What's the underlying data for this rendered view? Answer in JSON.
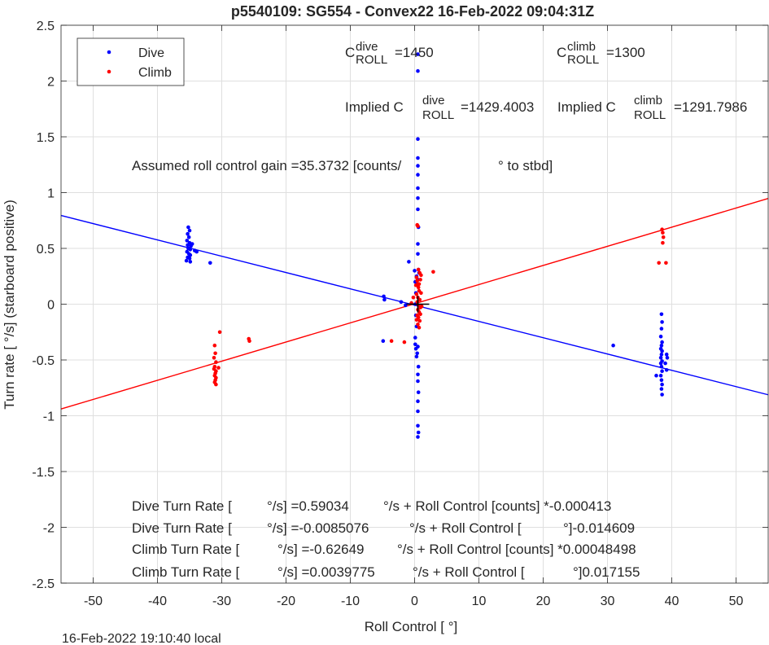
{
  "chart_data": {
    "type": "scatter",
    "title": "p5540109: SG554 - Convex22 16-Feb-2022 09:04:31Z",
    "xlabel": "Roll Control [   °]",
    "ylabel": "Turn rate [   °/s] (starboard positive)",
    "xlim": [
      -55,
      55
    ],
    "ylim": [
      -2.5,
      2.5
    ],
    "xticks": [
      -50,
      -40,
      -30,
      -20,
      -10,
      0,
      10,
      20,
      30,
      40,
      50
    ],
    "yticks": [
      -2.5,
      -2,
      -1.5,
      -1,
      -0.5,
      0,
      0.5,
      1,
      1.5,
      2,
      2.5
    ],
    "grid": true,
    "legend_position": "top-left",
    "colors": {
      "dive": "#0000ff",
      "climb": "#ff0000",
      "grid": "#dfdfdf"
    },
    "legend": [
      {
        "name": "Dive",
        "color": "#0000ff"
      },
      {
        "name": "Climb",
        "color": "#ff0000"
      }
    ],
    "annotations": {
      "c_dive_prefix": "C",
      "c_dive_sup": "dive",
      "c_dive_sub": "ROLL",
      "c_dive_value": "=1450",
      "c_climb_prefix": "C",
      "c_climb_sup": "climb",
      "c_climb_sub": "ROLL",
      "c_climb_value": "=1300",
      "implied_dive_prefix": "Implied C",
      "implied_dive_sup": "dive",
      "implied_dive_sub": "ROLL",
      "implied_dive_value": "=1429.4003",
      "implied_climb_prefix": "Implied C",
      "implied_climb_sup": "climb",
      "implied_climb_sub": "ROLL",
      "implied_climb_value": "=1291.7986",
      "gain_a": "Assumed roll control gain =35.3732 [counts/",
      "gain_b": "° to stbd]",
      "eq1_a": "Dive Turn Rate [",
      "eq1_b": "°/s] =0.59034",
      "eq1_c": "°/s + Roll Control [counts] *-0.000413",
      "eq2_a": "Dive Turn Rate [",
      "eq2_b": "°/s] =-0.0085076",
      "eq2_c": "°/s + Roll Control [",
      "eq2_d": "°]-0.014609",
      "eq3_a": "Climb Turn Rate [",
      "eq3_b": "°/s] =-0.62649",
      "eq3_c": "°/s + Roll Control [counts] *0.00048498",
      "eq4_a": "Climb Turn Rate [",
      "eq4_b": "°/s] =0.0039775",
      "eq4_c": "°/s + Roll Control [",
      "eq4_d": "°]0.017155"
    },
    "timestamp": "16-Feb-2022 19:10:40 local",
    "fit_lines": [
      {
        "series": "Dive",
        "color": "#0000ff",
        "intercept": -0.0085076,
        "slope": -0.014609
      },
      {
        "series": "Climb",
        "color": "#ff0000",
        "intercept": 0.0039775,
        "slope": 0.017155
      }
    ],
    "centroid_marker": {
      "x": 0.5,
      "y": 0.0
    },
    "series": [
      {
        "name": "Dive",
        "color": "#0000ff",
        "points": [
          [
            -35.2,
            0.69
          ],
          [
            -35.0,
            0.66
          ],
          [
            -35.3,
            0.63
          ],
          [
            -35.1,
            0.6
          ],
          [
            -35.4,
            0.57
          ],
          [
            -35.0,
            0.55
          ],
          [
            -35.3,
            0.53
          ],
          [
            -34.8,
            0.52
          ],
          [
            -34.6,
            0.54
          ],
          [
            -35.2,
            0.5
          ],
          [
            -34.9,
            0.49
          ],
          [
            -35.4,
            0.47
          ],
          [
            -35.1,
            0.45
          ],
          [
            -34.9,
            0.44
          ],
          [
            -35.3,
            0.42
          ],
          [
            -35.0,
            0.41
          ],
          [
            -35.5,
            0.39
          ],
          [
            -34.9,
            0.38
          ],
          [
            -34.2,
            0.48
          ],
          [
            -33.9,
            0.47
          ],
          [
            -31.8,
            0.37
          ],
          [
            -4.8,
            0.07
          ],
          [
            -4.7,
            0.04
          ],
          [
            -4.9,
            -0.33
          ],
          [
            -2.1,
            0.02
          ],
          [
            -1.4,
            -0.01
          ],
          [
            -0.9,
            0.38
          ],
          [
            0.0,
            0.3
          ],
          [
            0.1,
            0.2
          ],
          [
            0.2,
            0.1
          ],
          [
            0.1,
            0.0
          ],
          [
            0.2,
            -0.1
          ],
          [
            0.3,
            -0.2
          ],
          [
            0.1,
            -0.3
          ],
          [
            0.2,
            -0.4
          ],
          [
            0.3,
            -0.47
          ],
          [
            0.1,
            -0.36
          ],
          [
            0.4,
            -0.44
          ],
          [
            0.5,
            -0.38
          ],
          [
            0.6,
            0.31
          ],
          [
            0.7,
            0.28
          ],
          [
            0.3,
            0.25
          ],
          [
            0.5,
            0.22
          ],
          [
            0.5,
            0.45
          ],
          [
            0.5,
            0.54
          ],
          [
            0.6,
            0.69
          ],
          [
            0.5,
            0.85
          ],
          [
            0.5,
            0.95
          ],
          [
            0.5,
            1.04
          ],
          [
            0.5,
            1.16
          ],
          [
            0.5,
            1.24
          ],
          [
            0.5,
            1.31
          ],
          [
            0.5,
            1.48
          ],
          [
            0.5,
            2.09
          ],
          [
            0.5,
            2.24
          ],
          [
            0.6,
            -0.56
          ],
          [
            0.5,
            -0.63
          ],
          [
            0.5,
            -0.69
          ],
          [
            0.6,
            -0.79
          ],
          [
            0.5,
            -0.87
          ],
          [
            0.5,
            -0.96
          ],
          [
            0.5,
            -1.09
          ],
          [
            0.6,
            -1.15
          ],
          [
            0.5,
            -1.19
          ],
          [
            30.9,
            -0.37
          ],
          [
            37.6,
            -0.64
          ],
          [
            38.4,
            -0.09
          ],
          [
            38.5,
            -0.16
          ],
          [
            38.4,
            -0.22
          ],
          [
            38.3,
            -0.29
          ],
          [
            38.5,
            -0.34
          ],
          [
            38.4,
            -0.37
          ],
          [
            38.3,
            -0.4
          ],
          [
            38.5,
            -0.42
          ],
          [
            38.4,
            -0.45
          ],
          [
            38.3,
            -0.48
          ],
          [
            38.5,
            -0.51
          ],
          [
            38.3,
            -0.53
          ],
          [
            38.4,
            -0.56
          ],
          [
            38.5,
            -0.6
          ],
          [
            38.3,
            -0.64
          ],
          [
            38.4,
            -0.68
          ],
          [
            38.5,
            -0.72
          ],
          [
            38.4,
            -0.76
          ],
          [
            38.5,
            -0.81
          ],
          [
            39.2,
            -0.45
          ],
          [
            39.3,
            -0.48
          ],
          [
            39.0,
            -0.53
          ],
          [
            39.2,
            -0.59
          ]
        ]
      },
      {
        "name": "Climb",
        "color": "#ff0000",
        "points": [
          [
            -31.1,
            -0.37
          ],
          [
            -31.0,
            -0.44
          ],
          [
            -31.2,
            -0.48
          ],
          [
            -30.9,
            -0.52
          ],
          [
            -31.1,
            -0.56
          ],
          [
            -31.2,
            -0.58
          ],
          [
            -30.9,
            -0.6
          ],
          [
            -31.0,
            -0.62
          ],
          [
            -31.1,
            -0.64
          ],
          [
            -30.9,
            -0.66
          ],
          [
            -31.0,
            -0.68
          ],
          [
            -31.1,
            -0.7
          ],
          [
            -30.9,
            -0.72
          ],
          [
            -30.5,
            -0.57
          ],
          [
            -30.3,
            -0.25
          ],
          [
            -25.8,
            -0.31
          ],
          [
            -25.7,
            -0.33
          ],
          [
            -3.6,
            -0.33
          ],
          [
            -1.6,
            -0.34
          ],
          [
            -0.5,
            0.01
          ],
          [
            -0.2,
            0.06
          ],
          [
            0.3,
            0.24
          ],
          [
            0.4,
            0.21
          ],
          [
            0.5,
            0.18
          ],
          [
            0.6,
            0.15
          ],
          [
            0.7,
            0.12
          ],
          [
            0.3,
            0.09
          ],
          [
            0.5,
            0.06
          ],
          [
            0.8,
            0.04
          ],
          [
            0.4,
            0.02
          ],
          [
            0.6,
            -0.01
          ],
          [
            0.9,
            -0.03
          ],
          [
            0.5,
            -0.05
          ],
          [
            0.7,
            -0.07
          ],
          [
            0.4,
            -0.1
          ],
          [
            0.6,
            -0.12
          ],
          [
            0.8,
            -0.15
          ],
          [
            0.5,
            -0.18
          ],
          [
            0.7,
            -0.21
          ],
          [
            0.9,
            0.22
          ],
          [
            1.0,
            0.1
          ],
          [
            1.1,
            -0.02
          ],
          [
            0.2,
            0.17
          ],
          [
            0.3,
            -0.14
          ],
          [
            1.0,
            0.26
          ],
          [
            0.6,
            0.31
          ],
          [
            0.8,
            0.28
          ],
          [
            0.4,
            0.71
          ],
          [
            0.5,
            0.7
          ],
          [
            0.7,
            0.18
          ],
          [
            0.9,
            -0.09
          ],
          [
            2.9,
            0.29
          ],
          [
            38.0,
            0.37
          ],
          [
            38.5,
            0.67
          ],
          [
            38.6,
            0.64
          ],
          [
            38.7,
            0.6
          ],
          [
            38.6,
            0.55
          ],
          [
            39.1,
            0.37
          ]
        ]
      }
    ]
  }
}
